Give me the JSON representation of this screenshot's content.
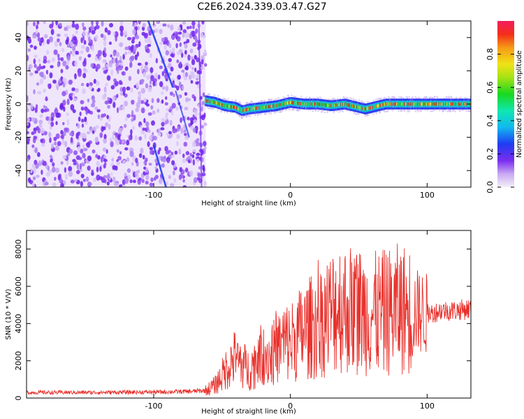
{
  "title": "C2E6.2024.339.03.47.G27",
  "chart_data": [
    {
      "type": "heatmap",
      "xlabel": "Height of straight line (km)",
      "ylabel": "Frequency (Hz)",
      "xlim": [
        -193,
        132
      ],
      "ylim": [
        -50,
        50
      ],
      "xticks": [
        -100,
        0,
        100
      ],
      "xtick_labels": [
        "-100",
        "0",
        "100"
      ],
      "yticks": [
        -40,
        -20,
        0,
        20,
        40
      ],
      "ytick_labels": [
        "-40",
        "-20",
        "0",
        "20",
        "40"
      ],
      "colorbar": {
        "label": "Normalized spectral amplitude",
        "range": [
          0,
          1
        ],
        "ticks": [
          0.0,
          0.2,
          0.4,
          0.6,
          0.8
        ],
        "tick_labels": [
          "0.0",
          "0.2",
          "0.4",
          "0.6",
          "0.8"
        ]
      },
      "noise_region_x": [
        -193,
        -62
      ],
      "ridge": {
        "x": [
          -62,
          -55,
          -48,
          -40,
          -35,
          -30,
          -20,
          -10,
          0,
          10,
          20,
          30,
          40,
          50,
          55,
          60,
          70,
          80,
          90,
          100,
          110,
          120,
          132
        ],
        "y": [
          2,
          1,
          -1,
          -2,
          -4,
          -3,
          -2,
          -1,
          1,
          0,
          0,
          -1,
          0,
          -2,
          -3,
          -2,
          0,
          0,
          0,
          0,
          0,
          0,
          0
        ]
      },
      "grid": false
    },
    {
      "type": "line",
      "xlabel": "Height of straight line (km)",
      "ylabel": "SNR (10 * V/V)",
      "xlim": [
        -193,
        132
      ],
      "ylim": [
        0,
        9000
      ],
      "xticks": [
        -100,
        0,
        100
      ],
      "xtick_labels": [
        "-100",
        "0",
        "100"
      ],
      "yticks": [
        0,
        2000,
        4000,
        6000,
        8000
      ],
      "ytick_labels": [
        "0",
        "2000",
        "4000",
        "6000",
        "8000"
      ],
      "color": "#e8312c",
      "series": [
        {
          "x": [
            -193,
            -150,
            -100,
            -75,
            -62,
            -55,
            -50,
            -45,
            -40,
            -35,
            -30,
            -25,
            -20,
            -15,
            -10,
            -5,
            0,
            10,
            20,
            30,
            35,
            40,
            50,
            60,
            70,
            80,
            90,
            95,
            100,
            110,
            120,
            132
          ],
          "y": [
            300,
            300,
            320,
            350,
            400,
            700,
            1200,
            1800,
            2200,
            1800,
            1500,
            2000,
            2500,
            2200,
            2600,
            3000,
            3000,
            3600,
            4000,
            4600,
            5000,
            4800,
            4700,
            4500,
            4600,
            4800,
            4700,
            4600,
            4500,
            4700,
            4700,
            4800
          ]
        }
      ],
      "grid": false
    }
  ]
}
